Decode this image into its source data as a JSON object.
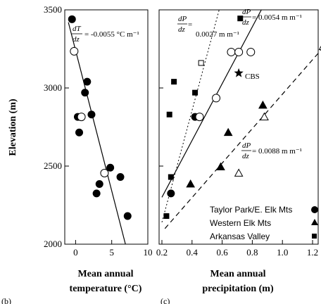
{
  "chart_data": [
    {
      "type": "scatter",
      "xlabel_lines": [
        "Mean annual",
        "temperature (°C)"
      ],
      "ylabel": "Elevation (m)",
      "xlim": [
        -1.5,
        10
      ],
      "ylim": [
        2000,
        3500
      ],
      "x_ticks": [
        0,
        5,
        10
      ],
      "y_ticks": [
        2000,
        2500,
        3000,
        3500
      ],
      "panel_label": "(b)",
      "annotation": {
        "numerator": "dT",
        "denominator": "dz",
        "value": "= -0.0055 °C m⁻¹"
      },
      "series": [
        {
          "marker": "filled-circle",
          "x": [
            -0.5,
            1.6,
            1.3,
            2.2,
            0.3,
            0.5,
            4.8,
            6.2,
            3.3,
            2.9,
            7.2
          ],
          "y": [
            3440,
            3040,
            2970,
            2830,
            2815,
            2715,
            2490,
            2430,
            2385,
            2325,
            2180
          ]
        },
        {
          "marker": "open-circle",
          "x": [
            -0.2,
            0.8,
            4.0
          ],
          "y": [
            3235,
            2815,
            2455
          ]
        }
      ],
      "fit_line": {
        "x": [
          -1.0,
          6.9
        ],
        "y": [
          3420,
          2000
        ]
      }
    },
    {
      "type": "scatter",
      "xlabel_lines": [
        "Mean annual",
        "precipitation (m)"
      ],
      "xlim": [
        0.2,
        1.3
      ],
      "ylim": [
        2000,
        3500
      ],
      "x_ticks": [
        "0.2",
        "0.4",
        "0.6",
        "0.8",
        "1.0",
        "1.2"
      ],
      "panel_label": "(c)",
      "annotations": [
        {
          "numerator": "dP",
          "denominator": "dz",
          "value": "=",
          "value2": "0.0027 m m⁻¹"
        },
        {
          "numerator": "dP",
          "denominator": "dz",
          "value": "= 0.0054 m m⁻¹"
        },
        {
          "numerator": "dP",
          "denominator": "dz",
          "value": "= 0.0088 m m⁻¹"
        }
      ],
      "star_label": "CBS",
      "legend": [
        {
          "label": "Taylor Park/E. Elk Mts",
          "marker": "circle"
        },
        {
          "label": "Western Elk Mts",
          "marker": "triangle"
        },
        {
          "label": "Arkansas Valley",
          "marker": "square"
        }
      ],
      "series": [
        {
          "name": "Taylor Park/E. Elk Mts",
          "marker": "filled-circle",
          "x": [
            0.26,
            0.42
          ],
          "y": [
            2325,
            2815
          ]
        },
        {
          "name": "Taylor Park/E. Elk Mts",
          "marker": "open-circle",
          "x": [
            0.45,
            0.56,
            0.66,
            0.71,
            0.79
          ],
          "y": [
            2815,
            2935,
            3230,
            3230,
            3230
          ]
        },
        {
          "name": "Western Elk Mts",
          "marker": "filled-triangle",
          "x": [
            0.39,
            0.59,
            0.64,
            0.87
          ],
          "y": [
            2385,
            2495,
            2715,
            2890
          ]
        },
        {
          "name": "Western Elk Mts",
          "marker": "open-triangle",
          "x": [
            0.71,
            0.88,
            1.27
          ],
          "y": [
            2455,
            2815,
            3265
          ]
        },
        {
          "name": "Arkansas Valley",
          "marker": "filled-square",
          "x": [
            0.23,
            0.26,
            0.25,
            0.28,
            0.42,
            0.72
          ],
          "y": [
            2180,
            2430,
            2830,
            3040,
            2970,
            3445
          ]
        },
        {
          "name": "Arkansas Valley",
          "marker": "open-square",
          "x": [
            0.46
          ],
          "y": [
            3160
          ]
        },
        {
          "name": "CBS",
          "marker": "filled-star",
          "x": [
            0.71
          ],
          "y": [
            3095
          ]
        }
      ],
      "fit_lines": [
        {
          "style": "dotted",
          "x": [
            0.2,
            0.58
          ],
          "y": [
            2140,
            3500
          ]
        },
        {
          "style": "solid",
          "x": [
            0.2,
            0.86
          ],
          "y": [
            2300,
            3500
          ]
        },
        {
          "style": "dashed",
          "x": [
            0.22,
            1.29
          ],
          "y": [
            2100,
            3280
          ]
        }
      ]
    }
  ]
}
